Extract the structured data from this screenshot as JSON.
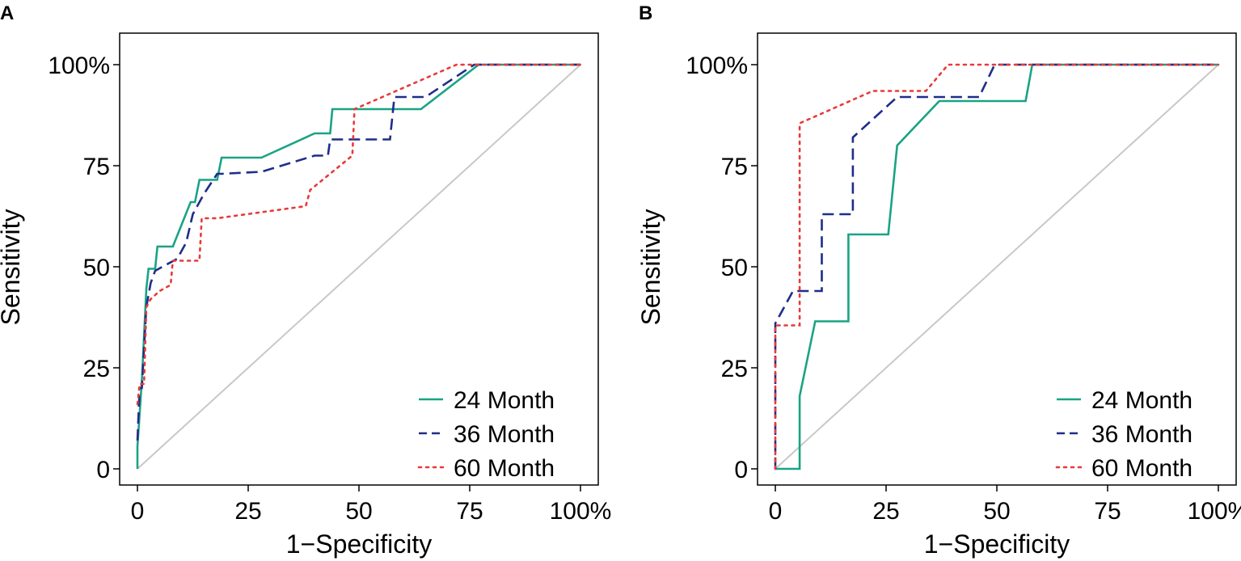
{
  "chart_data": [
    {
      "panel": "A",
      "type": "line",
      "xlabel": "1−Specificity",
      "ylabel": "Sensitivity",
      "xlim": [
        0,
        100
      ],
      "ylim": [
        0,
        100
      ],
      "xticks": [
        0,
        25,
        50,
        75,
        100
      ],
      "xtick_labels": [
        "0",
        "25",
        "50",
        "75",
        "100%"
      ],
      "yticks": [
        0,
        25,
        50,
        75,
        100
      ],
      "ytick_labels": [
        "0",
        "25",
        "50",
        "75",
        "100%"
      ],
      "reference_line": {
        "from": [
          0,
          0
        ],
        "to": [
          100,
          100
        ],
        "color": "#c8c8c8"
      },
      "legend_position": "bottom-right",
      "series": [
        {
          "name": "24 Month",
          "color": "#1aa385",
          "style": "solid",
          "x": [
            0,
            0,
            1,
            1.5,
            2,
            2.5,
            4,
            4.5,
            5,
            8,
            12,
            13,
            14,
            17.5,
            18,
            19,
            28,
            40,
            43.5,
            44,
            64,
            77,
            100
          ],
          "y": [
            0,
            5.5,
            22,
            33,
            44.5,
            49.5,
            49.5,
            55,
            55,
            55,
            66,
            66,
            71.5,
            71.5,
            71.5,
            77,
            77,
            83,
            83,
            89,
            89,
            100,
            100
          ]
        },
        {
          "name": "36 Month",
          "color": "#1f2d8a",
          "style": "dashed",
          "x": [
            0,
            0.5,
            1,
            1.5,
            2,
            3,
            4,
            9,
            11,
            12.5,
            15,
            18,
            19,
            28,
            40,
            43,
            43.5,
            57,
            58,
            65,
            76,
            100
          ],
          "y": [
            7,
            20,
            20,
            30,
            40,
            46,
            49,
            52,
            56,
            63,
            68,
            73,
            73,
            73.5,
            77.5,
            77.5,
            81.5,
            81.5,
            92,
            92,
            100,
            100
          ]
        },
        {
          "name": "60 Month",
          "color": "#e83a3a",
          "style": "dotted",
          "x": [
            0,
            0.5,
            1.5,
            2,
            3,
            5,
            7.5,
            8,
            14,
            14.5,
            15,
            18,
            38,
            39,
            48.5,
            49,
            72,
            76,
            100
          ],
          "y": [
            16,
            21,
            21,
            40,
            42,
            44,
            45.5,
            51.5,
            51.5,
            62,
            62,
            62,
            65,
            69,
            77.5,
            89,
            100,
            100,
            100
          ]
        }
      ]
    },
    {
      "panel": "B",
      "type": "line",
      "xlabel": "1−Specificity",
      "ylabel": "Sensitivity",
      "xlim": [
        0,
        100
      ],
      "ylim": [
        0,
        100
      ],
      "xticks": [
        0,
        25,
        50,
        75,
        100
      ],
      "xtick_labels": [
        "0",
        "25",
        "50",
        "75",
        "100%"
      ],
      "yticks": [
        0,
        25,
        50,
        75,
        100
      ],
      "ytick_labels": [
        "0",
        "25",
        "50",
        "75",
        "100%"
      ],
      "reference_line": {
        "from": [
          0,
          0
        ],
        "to": [
          100,
          100
        ],
        "color": "#c8c8c8"
      },
      "legend_position": "bottom-right",
      "series": [
        {
          "name": "24 Month",
          "color": "#1aa385",
          "style": "solid",
          "x": [
            0,
            5.5,
            5.5,
            9,
            16.5,
            16.5,
            25.5,
            27.5,
            37,
            56.5,
            58,
            100
          ],
          "y": [
            0,
            0,
            18,
            36.5,
            36.5,
            58,
            58,
            80,
            91,
            91,
            100,
            100
          ]
        },
        {
          "name": "36 Month",
          "color": "#1f2d8a",
          "style": "dashed",
          "x": [
            0,
            0,
            0,
            4,
            10.5,
            10.5,
            17.5,
            17.5,
            27.5,
            46,
            49.5,
            100
          ],
          "y": [
            0,
            35,
            36,
            44,
            44,
            63,
            63,
            82,
            92,
            92,
            100,
            100
          ]
        },
        {
          "name": "60 Month",
          "color": "#e83a3a",
          "style": "dotted",
          "x": [
            0,
            0,
            0,
            5,
            5.5,
            5.5,
            22,
            34,
            39,
            100
          ],
          "y": [
            0,
            35.5,
            35.5,
            35.5,
            35.5,
            85.5,
            93.5,
            93.5,
            100,
            100
          ]
        }
      ]
    }
  ]
}
